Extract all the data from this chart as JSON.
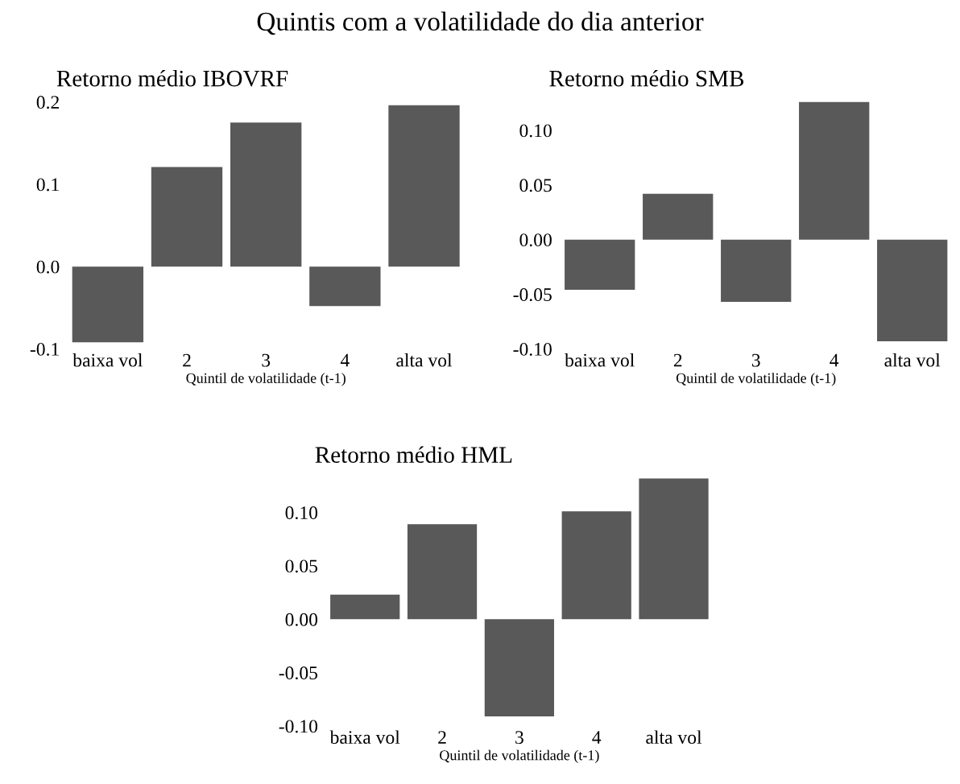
{
  "chart_data": [
    {
      "type": "bar",
      "title": "Retorno médio IBOVRF",
      "xlabel": "Quintil de volatilidade (t-1)",
      "annotations": [
        "Quintis com a volatilidade do dia anterior"
      ],
      "categories": [
        "baixa vol",
        "2",
        "3",
        "4",
        "alta vol"
      ],
      "values": [
        -0.092,
        0.121,
        0.175,
        -0.048,
        0.196
      ],
      "color": "#595959",
      "ylim": [
        -0.1,
        0.2
      ],
      "yticks": [
        {
          "value": -0.1,
          "label": "-0.1"
        },
        {
          "value": 0.0,
          "label": "0.0"
        },
        {
          "value": 0.1,
          "label": "0.1"
        },
        {
          "value": 0.2,
          "label": "0.2"
        }
      ],
      "grid": false
    },
    {
      "type": "bar",
      "title": "Retorno médio SMB",
      "xlabel": "Quintil de volatilidade (t-1)",
      "categories": [
        "baixa vol",
        "2",
        "3",
        "4",
        "alta vol"
      ],
      "values": [
        -0.046,
        0.042,
        -0.057,
        0.126,
        -0.093
      ],
      "color": "#595959",
      "ylim": [
        -0.1,
        0.126
      ],
      "yticks": [
        {
          "value": -0.1,
          "label": "-0.10"
        },
        {
          "value": -0.05,
          "label": "-0.05"
        },
        {
          "value": 0.0,
          "label": "0.00"
        },
        {
          "value": 0.05,
          "label": "0.05"
        },
        {
          "value": 0.1,
          "label": "0.10"
        }
      ],
      "grid": false
    },
    {
      "type": "bar",
      "title": "Retorno médio HML",
      "xlabel": "Quintil de volatilidade (t-1)",
      "categories": [
        "baixa vol",
        "2",
        "3",
        "4",
        "alta vol"
      ],
      "values": [
        0.023,
        0.089,
        -0.091,
        0.101,
        0.132
      ],
      "color": "#595959",
      "ylim": [
        -0.1,
        0.132
      ],
      "yticks": [
        {
          "value": -0.1,
          "label": "-0.10"
        },
        {
          "value": -0.05,
          "label": "-0.05"
        },
        {
          "value": 0.0,
          "label": "0.00"
        },
        {
          "value": 0.05,
          "label": "0.05"
        },
        {
          "value": 0.1,
          "label": "0.10"
        }
      ],
      "grid": false
    }
  ]
}
